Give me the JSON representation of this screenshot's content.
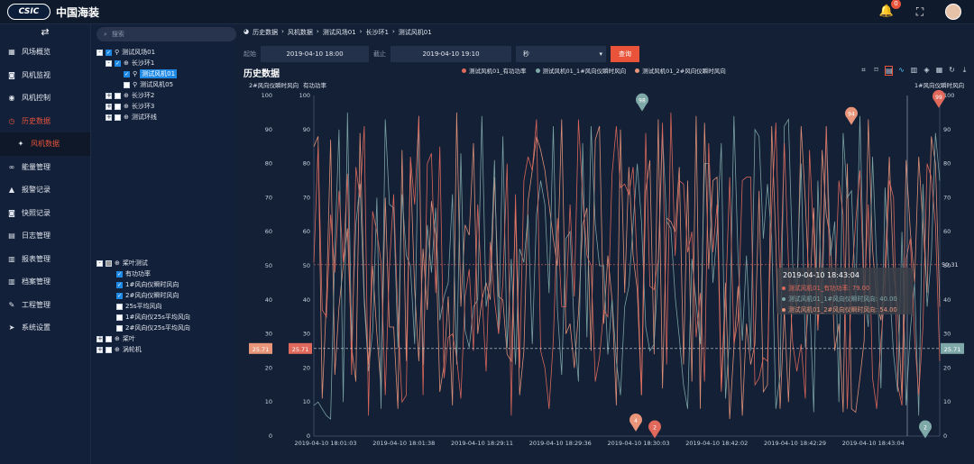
{
  "brand": {
    "badge": "CSIC",
    "name": "中国海装",
    "notifications": "0"
  },
  "sidebar": {
    "toggle": "⇄",
    "items": [
      {
        "label": "风场概览",
        "icon": "grid-icon"
      },
      {
        "label": "风机监视",
        "icon": "camera-icon"
      },
      {
        "label": "风机控制",
        "icon": "target-icon"
      },
      {
        "label": "历史数据",
        "icon": "clock-icon",
        "active": true
      },
      {
        "label": "风机数据",
        "icon": "gear-icon",
        "sub": true
      },
      {
        "label": "能量管理",
        "icon": "link-icon"
      },
      {
        "label": "报警记录",
        "icon": "bell-icon"
      },
      {
        "label": "快照记录",
        "icon": "camera-icon"
      },
      {
        "label": "日志管理",
        "icon": "doc-icon"
      },
      {
        "label": "报表管理",
        "icon": "table-icon"
      },
      {
        "label": "档案管理",
        "icon": "table-icon"
      },
      {
        "label": "工程管理",
        "icon": "wrench-icon"
      },
      {
        "label": "系统设置",
        "icon": "send-icon"
      }
    ]
  },
  "tree": {
    "search_placeholder": "搜索",
    "farm": "测试风场01",
    "ring1": "长沙环1",
    "turbine1": "测试风机01",
    "turbine5": "测试风机05",
    "ring2": "长沙环2",
    "ring3": "长沙环3",
    "testring": "测试环线",
    "param_root": "桨叶测试",
    "params": [
      "有功功率",
      "1#风向仪瞬时风向",
      "2#风向仪瞬时风向",
      "25s平均风向",
      "1#风向仪25s平均风向",
      "2#风向仪25s平均风向"
    ],
    "blade": "桨叶",
    "gearbox": "涡轮机"
  },
  "breadcrumb": [
    "历史数据",
    "风机数据",
    "测试风场01",
    "长沙环1",
    "测试风机01"
  ],
  "filter": {
    "start_label": "起始",
    "start_value": "2019-04-10 18:00",
    "end_label": "截止",
    "end_value": "2019-04-10 19:10",
    "unit": "秒",
    "query": "查询"
  },
  "chart_title": "历史数据",
  "colors": {
    "s1": "#e1695c",
    "s2": "#7fa8a8",
    "s3": "#e8957a",
    "bg": "#132036"
  },
  "chart_data": {
    "type": "line",
    "legend": [
      "测试风机01_有功功率",
      "测试风机01_1#风向仪瞬时风向",
      "测试风机01_2#风向仪瞬时风向"
    ],
    "y_left_label_1": "2#风向仪瞬时风向",
    "y_left_label_2": "有功功率",
    "y_right_label": "1#风向仪瞬时风向",
    "ylim": [
      0,
      100
    ],
    "yticks": [
      0,
      10,
      20,
      30,
      40,
      50,
      60,
      70,
      80,
      90,
      100
    ],
    "xticks": [
      "2019-04-10 18:01:03",
      "2019-04-10 18:01:38",
      "2019-04-10 18:29:11",
      "2019-04-10 18:29:36",
      "2019-04-10 18:30:03",
      "2019-04-10 18:42:02",
      "2019-04-10 18:42:29",
      "2019-04-10 18:43:04"
    ],
    "markline_value": "25.71",
    "avg_label": "50.31",
    "pins": [
      {
        "label": "98"
      },
      {
        "label": "94"
      },
      {
        "label": "99"
      },
      {
        "label": "4"
      },
      {
        "label": "2"
      },
      {
        "label": "2"
      }
    ],
    "tooltip": {
      "time": "2019-04-10 18:43:04",
      "rows": [
        "测试风机01_有功功率: 79.00",
        "测试风机01_1#风向仪瞬时风向: 40.00",
        "测试风机01_2#风向仪瞬时风向: 54.00"
      ]
    }
  }
}
